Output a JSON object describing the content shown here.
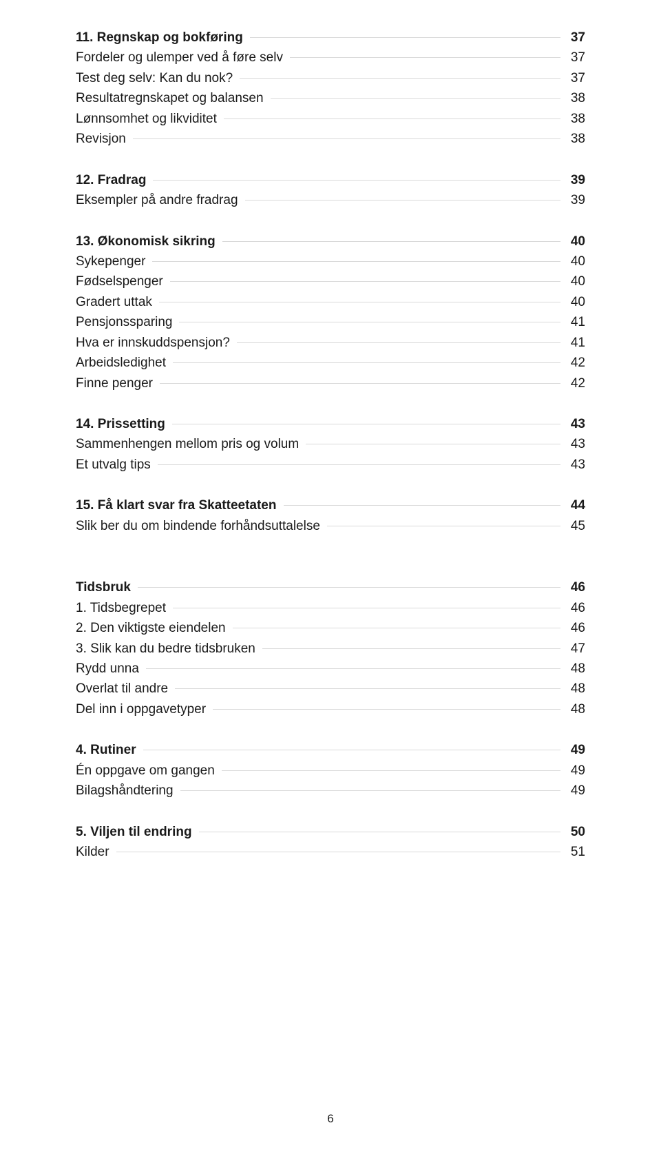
{
  "blocks": [
    {
      "gap": 30,
      "rows": [
        {
          "bold": true,
          "label": "11. Regnskap og bokføring",
          "page": "37"
        },
        {
          "bold": false,
          "label": "Fordeler og ulemper ved å føre selv",
          "page": "37"
        },
        {
          "bold": false,
          "label": "Test deg selv: Kan du nok?",
          "page": "37"
        },
        {
          "bold": false,
          "label": "Resultatregnskapet og balansen",
          "page": "38"
        },
        {
          "bold": false,
          "label": "Lønnsomhet og likviditet",
          "page": "38"
        },
        {
          "bold": false,
          "label": "Revisjon",
          "page": "38"
        }
      ]
    },
    {
      "gap": 30,
      "rows": [
        {
          "bold": true,
          "label": "12. Fradrag",
          "page": "39"
        },
        {
          "bold": false,
          "label": "Eksempler på andre fradrag",
          "page": "39"
        }
      ]
    },
    {
      "gap": 30,
      "rows": [
        {
          "bold": true,
          "label": "13. Økonomisk sikring",
          "page": "40"
        },
        {
          "bold": false,
          "label": "Sykepenger",
          "page": "40"
        },
        {
          "bold": false,
          "label": "Fødselspenger",
          "page": "40"
        },
        {
          "bold": false,
          "label": "Gradert uttak",
          "page": "40"
        },
        {
          "bold": false,
          "label": "Pensjonssparing",
          "page": "41"
        },
        {
          "bold": false,
          "label": "Hva er innskuddspensjon?",
          "page": "41"
        },
        {
          "bold": false,
          "label": "Arbeidsledighet",
          "page": "42"
        },
        {
          "bold": false,
          "label": "Finne penger",
          "page": "42"
        }
      ]
    },
    {
      "gap": 30,
      "rows": [
        {
          "bold": true,
          "label": "14. Prissetting",
          "page": "43"
        },
        {
          "bold": false,
          "label": "Sammenhengen mellom pris og volum",
          "page": "43"
        },
        {
          "bold": false,
          "label": "Et utvalg tips",
          "page": "43"
        }
      ]
    },
    {
      "gap": 60,
      "rows": [
        {
          "bold": true,
          "label": "15. Få klart svar fra Skatteetaten",
          "page": "44"
        },
        {
          "bold": false,
          "label": "Slik ber du om bindende forhåndsuttalelse",
          "page": "45"
        }
      ]
    },
    {
      "gap": 30,
      "rows": [
        {
          "bold": true,
          "label": "Tidsbruk",
          "page": "46"
        },
        {
          "bold": false,
          "label": "1. Tidsbegrepet",
          "page": "46"
        },
        {
          "bold": false,
          "label": "2. Den viktigste eiendelen",
          "page": "46"
        },
        {
          "bold": false,
          "label": "3. Slik kan du bedre tidsbruken",
          "page": "47"
        },
        {
          "bold": false,
          "label": "Rydd unna",
          "page": "48"
        },
        {
          "bold": false,
          "label": "Overlat til andre",
          "page": "48"
        },
        {
          "bold": false,
          "label": "Del inn i oppgavetyper",
          "page": "48"
        }
      ]
    },
    {
      "gap": 30,
      "rows": [
        {
          "bold": true,
          "label": "4. Rutiner",
          "page": "49"
        },
        {
          "bold": false,
          "label": "Én oppgave om gangen",
          "page": "49"
        },
        {
          "bold": false,
          "label": "Bilagshåndtering",
          "page": "49"
        }
      ]
    },
    {
      "gap": 30,
      "rows": [
        {
          "bold": true,
          "label": "5. Viljen til endring",
          "page": "50"
        },
        {
          "bold": false,
          "label": "Kilder",
          "page": "51"
        }
      ]
    }
  ],
  "footerPage": "6"
}
